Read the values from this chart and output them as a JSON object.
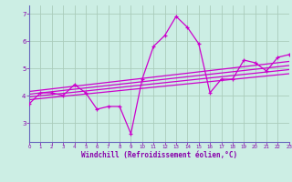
{
  "xlabel": "Windchill (Refroidissement éolien,°C)",
  "bg_color": "#cceee4",
  "line_color": "#cc00cc",
  "grid_color": "#aaccbb",
  "axis_color": "#8800aa",
  "hours": [
    0,
    1,
    2,
    3,
    4,
    5,
    6,
    7,
    8,
    9,
    10,
    11,
    12,
    13,
    14,
    15,
    16,
    17,
    18,
    19,
    20,
    21,
    22,
    23
  ],
  "main_values": [
    3.7,
    4.1,
    4.1,
    4.0,
    4.4,
    4.1,
    3.5,
    3.6,
    3.6,
    2.6,
    4.6,
    5.8,
    6.2,
    6.9,
    6.5,
    5.9,
    4.1,
    4.6,
    4.6,
    5.3,
    5.2,
    4.9,
    5.4,
    5.5
  ],
  "regression_lines": [
    {
      "x": [
        0,
        23
      ],
      "y": [
        4.15,
        5.25
      ]
    },
    {
      "x": [
        0,
        23
      ],
      "y": [
        4.05,
        5.1
      ]
    },
    {
      "x": [
        0,
        23
      ],
      "y": [
        3.95,
        4.95
      ]
    },
    {
      "x": [
        0,
        23
      ],
      "y": [
        3.85,
        4.8
      ]
    }
  ],
  "ylim": [
    2.3,
    7.3
  ],
  "xlim": [
    0,
    23
  ],
  "yticks": [
    3,
    4,
    5,
    6,
    7
  ],
  "xticks": [
    0,
    1,
    2,
    3,
    4,
    5,
    6,
    7,
    8,
    9,
    10,
    11,
    12,
    13,
    14,
    15,
    16,
    17,
    18,
    19,
    20,
    21,
    22,
    23
  ]
}
